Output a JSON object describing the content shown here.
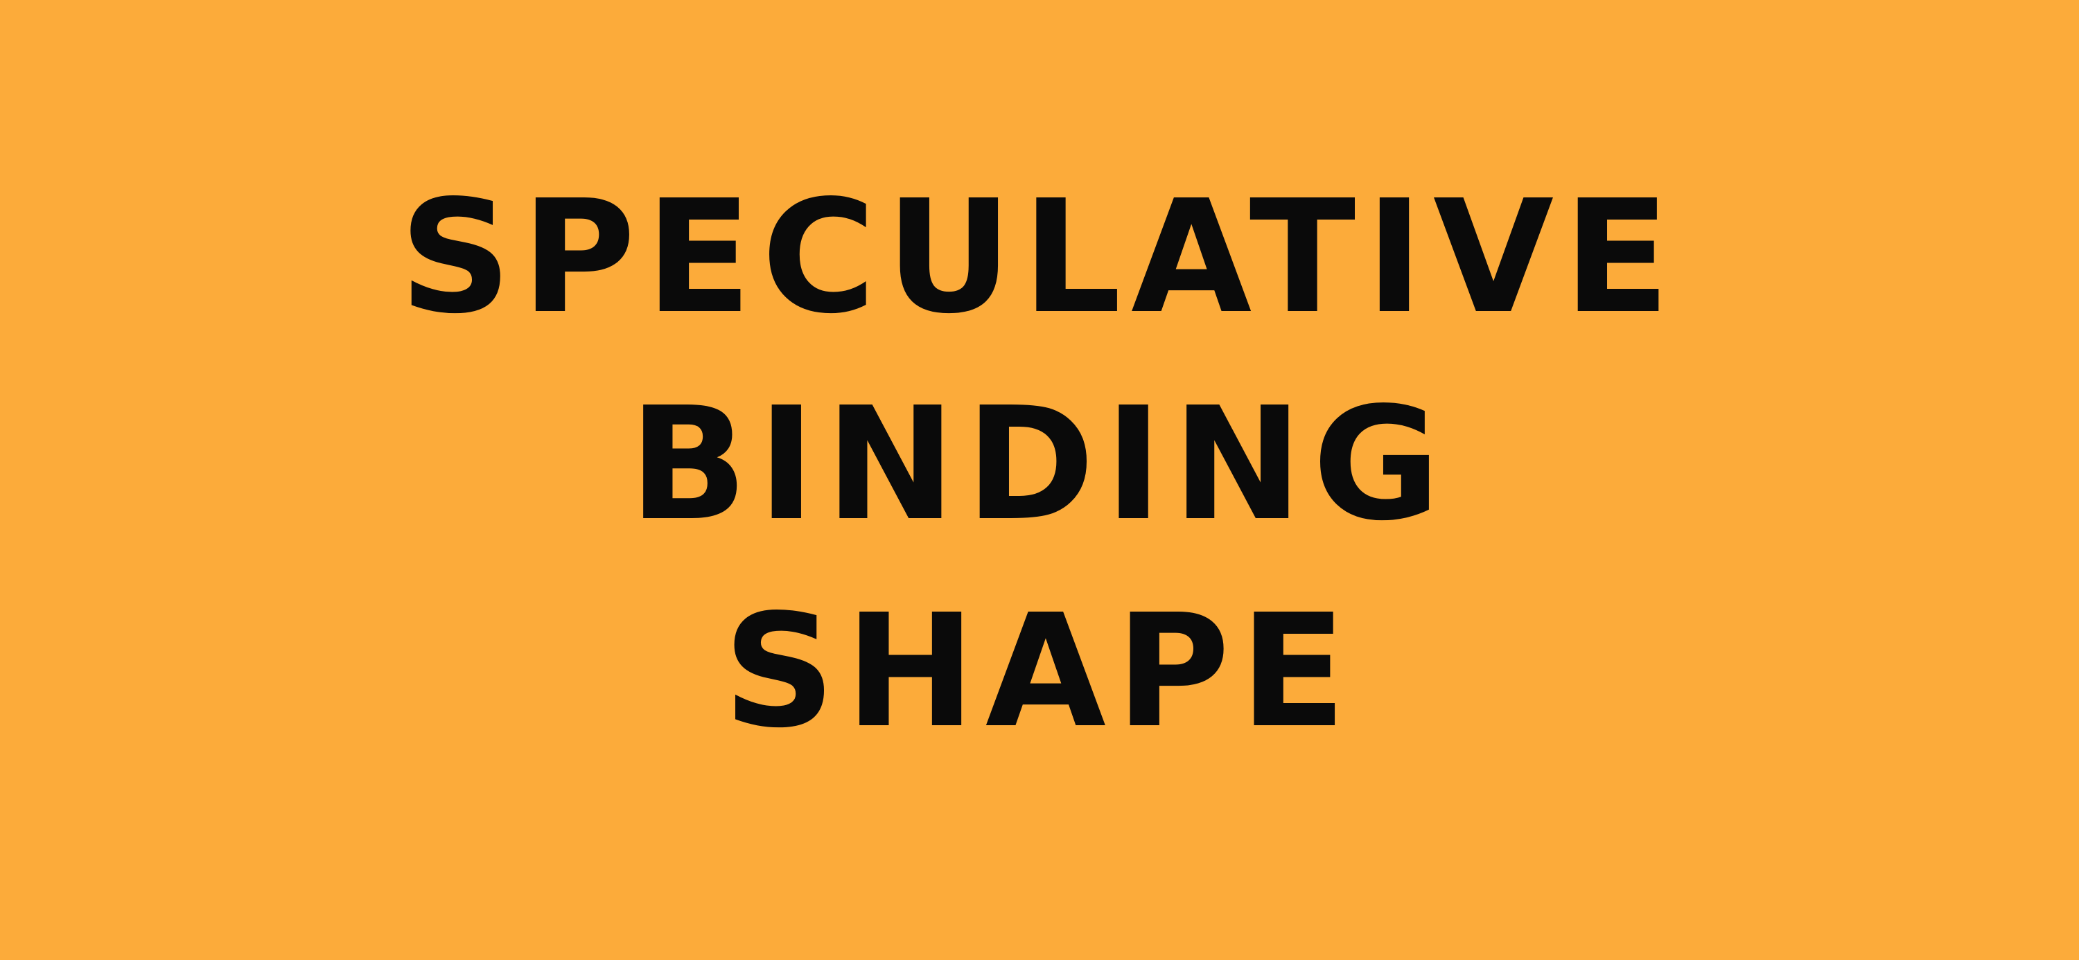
{
  "title": {
    "lines": [
      "SPECULATIVE",
      "BINDING",
      "SHAPE"
    ]
  },
  "colors": {
    "background": "#FCAB3A",
    "text": "#0A0A0A"
  }
}
